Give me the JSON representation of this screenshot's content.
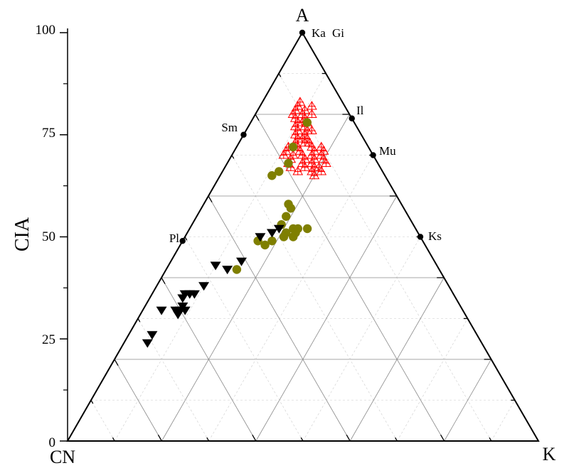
{
  "chart_data": {
    "type": "scatter",
    "ternary": true,
    "vertex_labels": {
      "top": "A",
      "left": "CN",
      "right": "K"
    },
    "y_axis": {
      "label": "CIA",
      "range": [
        0,
        100
      ],
      "ticks": [
        "0",
        "25",
        "50",
        "75",
        "100"
      ]
    },
    "grid": true,
    "minerals": [
      {
        "name": "Ka",
        "A": 100,
        "K": 0
      },
      {
        "name": "Gi",
        "A": 100,
        "K": 0
      },
      {
        "name": "Il",
        "A": 79,
        "K": 21
      },
      {
        "name": "Mu",
        "A": 70,
        "K": 30
      },
      {
        "name": "Sm",
        "A": 75,
        "K": 0
      },
      {
        "name": "Pl",
        "A": 49,
        "K": 0
      },
      {
        "name": "Ks",
        "A": 50,
        "K": 50
      }
    ],
    "series": [
      {
        "marker": "triangle-up-open",
        "color": "#ff0000",
        "points": [
          [
            83,
            8
          ],
          [
            82,
            8
          ],
          [
            81,
            8
          ],
          [
            80,
            8
          ],
          [
            79,
            9
          ],
          [
            78,
            10
          ],
          [
            77,
            10
          ],
          [
            76,
            11
          ],
          [
            75,
            11
          ],
          [
            74,
            12
          ],
          [
            73,
            12
          ],
          [
            72,
            13
          ],
          [
            71,
            14
          ],
          [
            70,
            15
          ],
          [
            69,
            16
          ],
          [
            68,
            16
          ],
          [
            70,
            13
          ],
          [
            69,
            13
          ],
          [
            68,
            13
          ],
          [
            67,
            14
          ],
          [
            66,
            16
          ],
          [
            71,
            11
          ],
          [
            70,
            11
          ],
          [
            72,
            18
          ],
          [
            71,
            19
          ],
          [
            70,
            19
          ],
          [
            69,
            20
          ],
          [
            68,
            21
          ],
          [
            67,
            20
          ],
          [
            66,
            21
          ],
          [
            67,
            17
          ],
          [
            73,
            14
          ],
          [
            74,
            14
          ],
          [
            76,
            14
          ],
          [
            78,
            12
          ],
          [
            80,
            12
          ],
          [
            82,
            11
          ],
          [
            81,
            10
          ],
          [
            79,
            11
          ],
          [
            77,
            12
          ],
          [
            75,
            13
          ],
          [
            68,
            18
          ],
          [
            70,
            17
          ],
          [
            72,
            16
          ],
          [
            67,
            19
          ],
          [
            69,
            18
          ],
          [
            76,
            13
          ],
          [
            74,
            13
          ],
          [
            72,
            11
          ],
          [
            66,
            19
          ],
          [
            65,
            20
          ],
          [
            71,
            17
          ],
          [
            73,
            15
          ],
          [
            80,
            10
          ],
          [
            78,
            11
          ]
        ]
      },
      {
        "marker": "circle",
        "color": "#7f7f00",
        "points": [
          [
            78,
            12
          ],
          [
            72,
            12
          ],
          [
            68,
            13
          ],
          [
            65,
            11
          ],
          [
            66,
            12
          ],
          [
            58,
            18
          ],
          [
            57,
            19
          ],
          [
            55,
            19
          ],
          [
            53,
            19
          ],
          [
            52,
            22
          ],
          [
            51,
            21
          ],
          [
            52,
            23
          ],
          [
            51,
            23
          ],
          [
            52,
            25
          ],
          [
            50,
            21
          ],
          [
            50,
            23
          ],
          [
            49,
            19
          ],
          [
            48,
            18
          ],
          [
            49,
            16
          ],
          [
            42,
            15
          ]
        ]
      },
      {
        "marker": "triangle-down",
        "color": "#000000",
        "points": [
          [
            51,
            18
          ],
          [
            52,
            19
          ],
          [
            50,
            16
          ],
          [
            44,
            15
          ],
          [
            42,
            13
          ],
          [
            43,
            10
          ],
          [
            38,
            10
          ],
          [
            36,
            8
          ],
          [
            36,
            9
          ],
          [
            36,
            7
          ],
          [
            32,
            9
          ],
          [
            32,
            8
          ],
          [
            33,
            8
          ],
          [
            31,
            8
          ],
          [
            32,
            7
          ],
          [
            35,
            7
          ],
          [
            32,
            4
          ],
          [
            26,
            5
          ],
          [
            24,
            5
          ]
        ]
      }
    ]
  }
}
